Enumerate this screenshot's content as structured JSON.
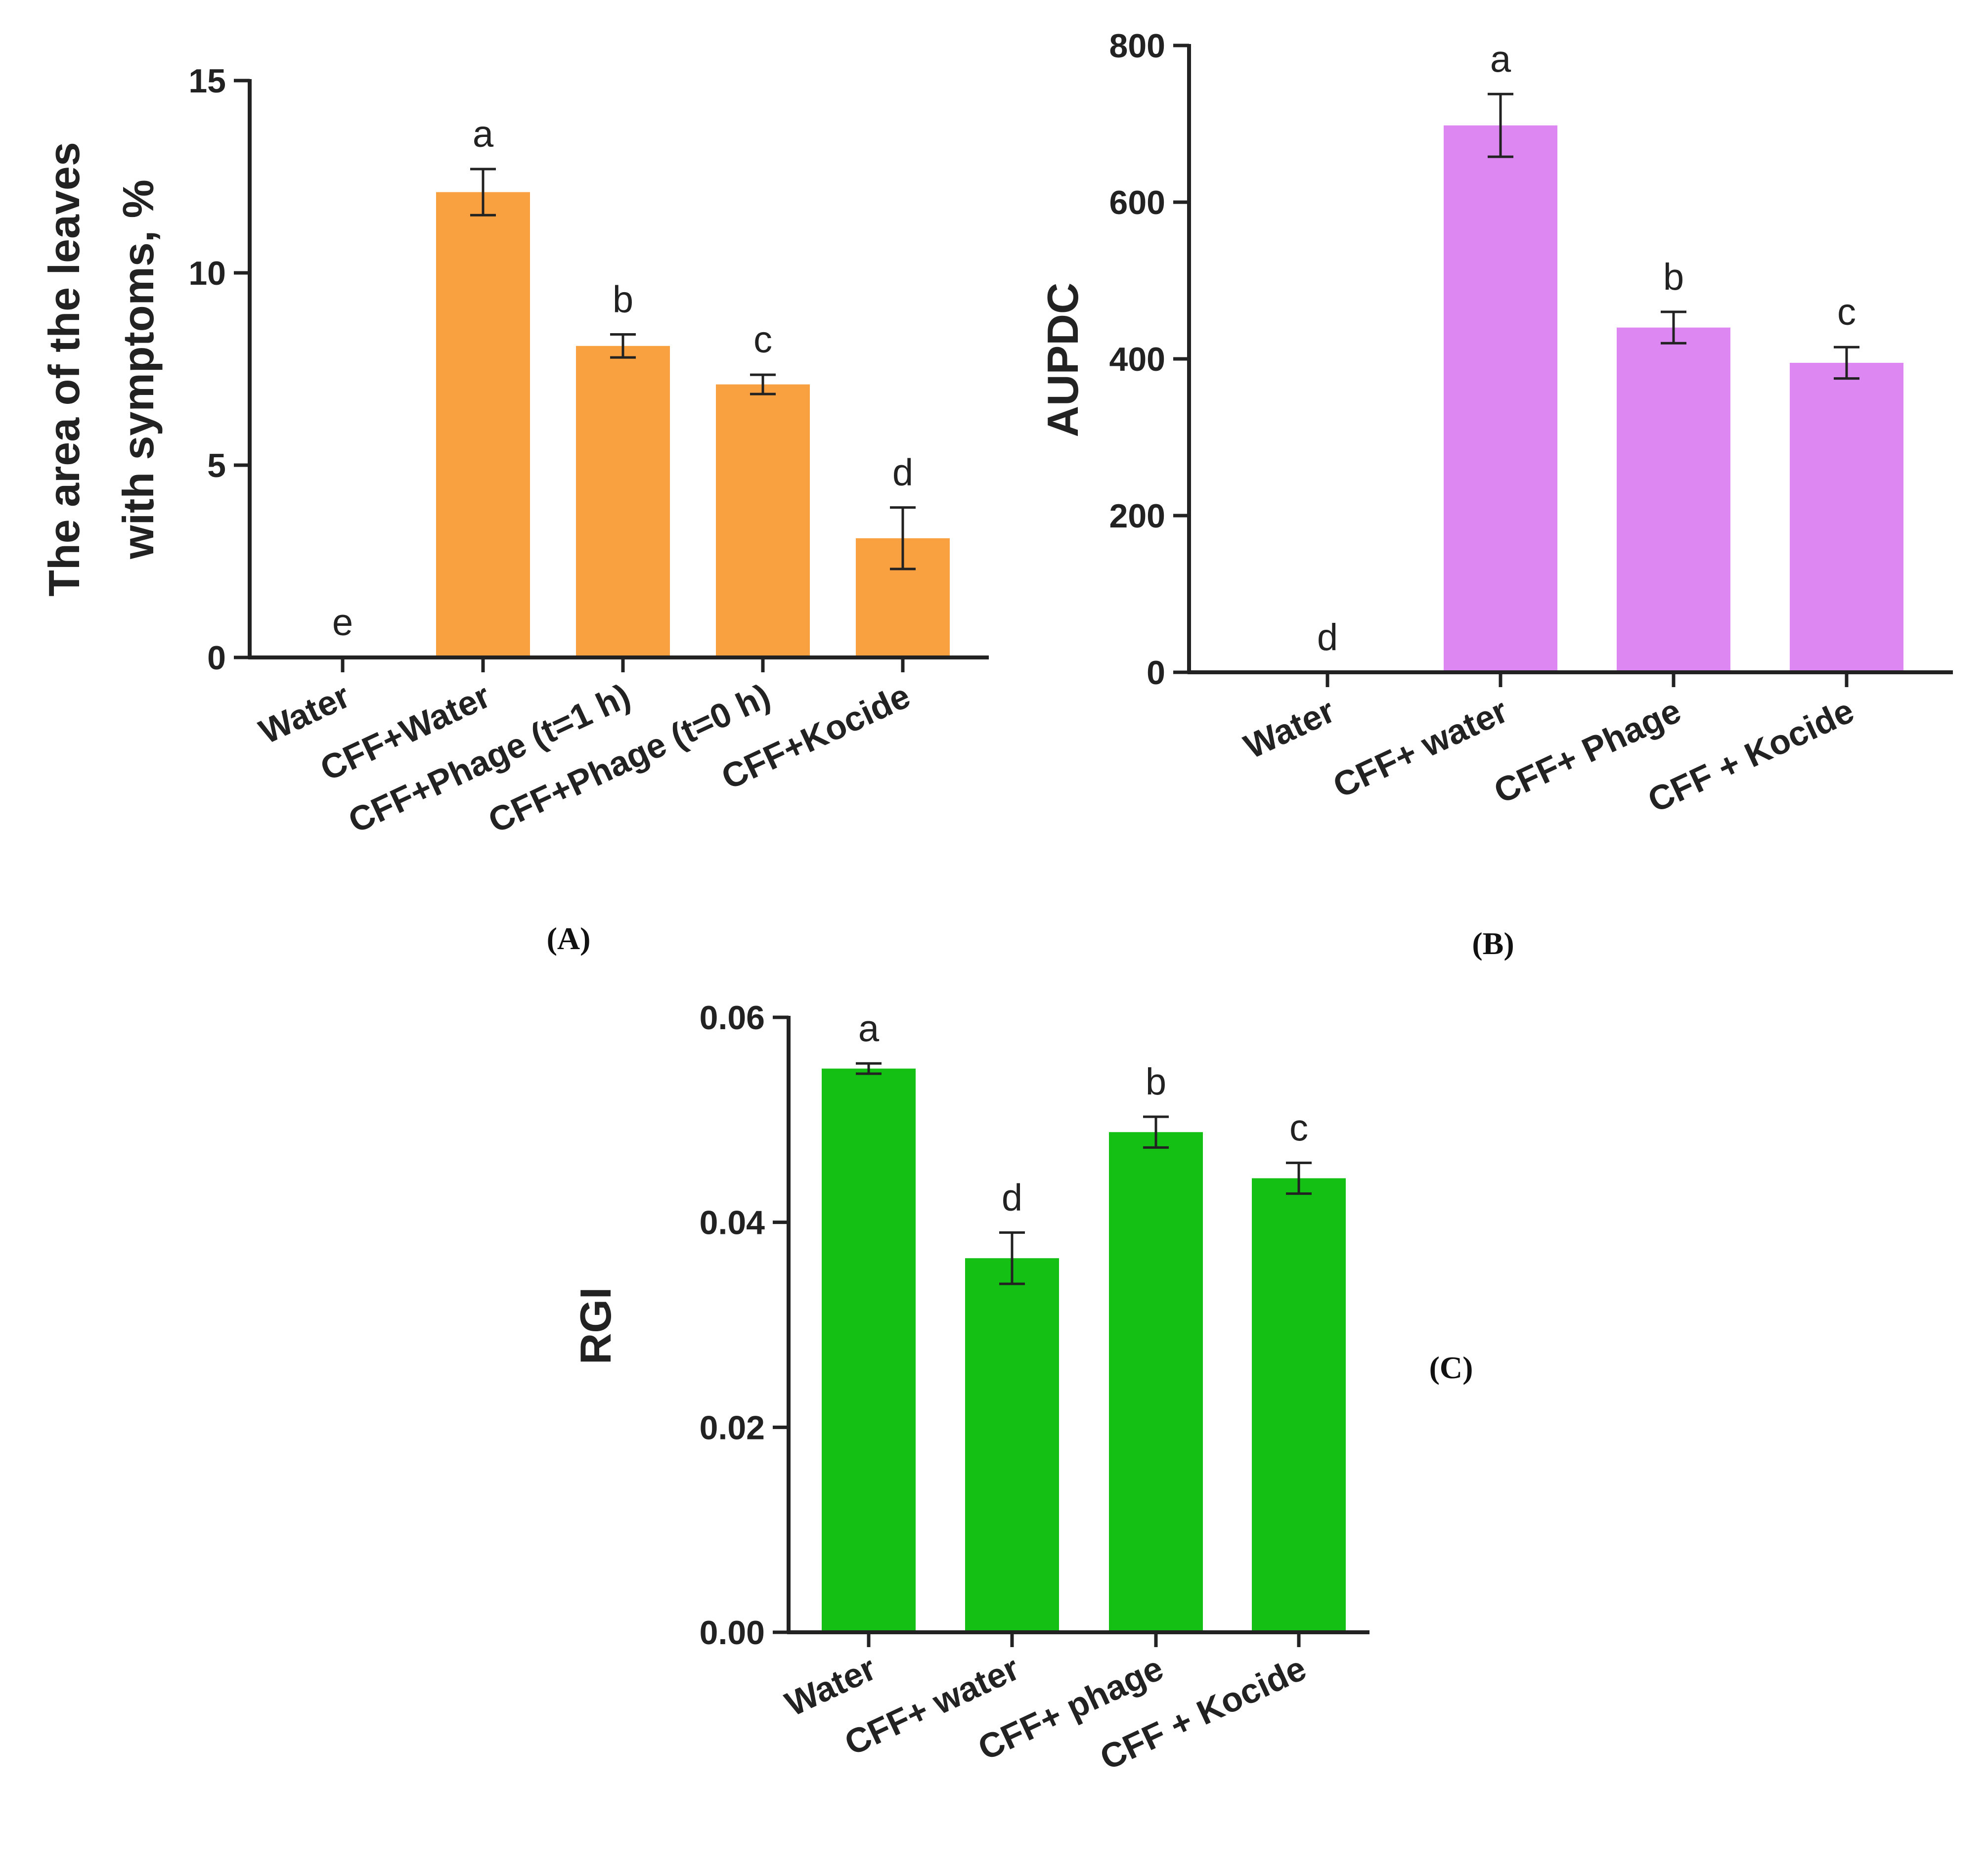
{
  "chart_data": [
    {
      "id": "A",
      "type": "bar",
      "panel_label": "(A)",
      "ylabel_lines": [
        "The area of the leaves",
        "with symptoms, %"
      ],
      "ylim": [
        0,
        15
      ],
      "yticks": [
        "0",
        "5",
        "10",
        "15"
      ],
      "ytick_values": [
        0,
        5,
        10,
        15
      ],
      "color": "#F9A040",
      "categories": [
        "Water",
        "CFF+Water",
        "CFF+Phage (t=1 h)",
        "CFF+Phage (t=0 h)",
        "CFF+Kocide"
      ],
      "values": [
        0,
        12.1,
        8.1,
        7.1,
        3.1
      ],
      "errors": [
        0,
        0.6,
        0.3,
        0.25,
        0.8
      ],
      "significance": [
        "e",
        "a",
        "b",
        "c",
        "d"
      ]
    },
    {
      "id": "B",
      "type": "bar",
      "panel_label": "(B)",
      "ylabel_lines": [
        "AUPDC"
      ],
      "ylim": [
        0,
        800
      ],
      "yticks": [
        "0",
        "200",
        "400",
        "600",
        "800"
      ],
      "ytick_values": [
        0,
        200,
        400,
        600,
        800
      ],
      "color": "#DD88F2",
      "categories": [
        "Water",
        "CFF+ water",
        "CFF+ Phage",
        "CFF + Kocide"
      ],
      "values": [
        0,
        698,
        440,
        395
      ],
      "errors": [
        0,
        40,
        20,
        20
      ],
      "significance": [
        "d",
        "a",
        "b",
        "c"
      ]
    },
    {
      "id": "C",
      "type": "bar",
      "panel_label": "(C)",
      "ylabel_lines": [
        "RGI"
      ],
      "ylim": [
        0,
        0.06
      ],
      "yticks": [
        "0.00",
        "0.02",
        "0.04",
        "0.06"
      ],
      "ytick_values": [
        0,
        0.02,
        0.04,
        0.06
      ],
      "color": "#13C013",
      "categories": [
        "Water",
        "CFF+ water",
        "CFF+ phage",
        "CFF + Kocide"
      ],
      "values": [
        0.055,
        0.0365,
        0.0488,
        0.0443
      ],
      "errors": [
        0.0005,
        0.0025,
        0.0015,
        0.0015
      ],
      "significance": [
        "a",
        "d",
        "b",
        "c"
      ]
    }
  ]
}
